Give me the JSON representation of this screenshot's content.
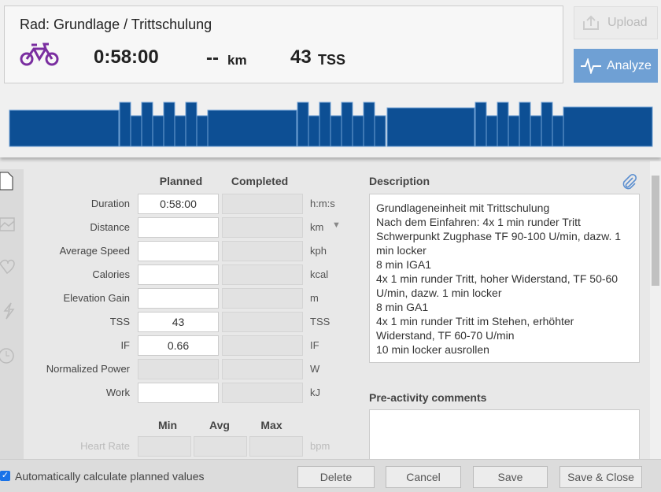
{
  "header": {
    "title": "Rad: Grundlage / Trittschulung",
    "duration": "0:58:00",
    "distance": "--",
    "distance_unit": "km",
    "tss": "43",
    "tss_unit": "TSS"
  },
  "actions": {
    "upload": "Upload",
    "analyze": "Analyze"
  },
  "planned_form": {
    "columns": [
      "Planned",
      "Completed"
    ],
    "rows": [
      {
        "label": "Duration",
        "planned": "0:58:00",
        "unit": "h:m:s"
      },
      {
        "label": "Distance",
        "unit": "km",
        "dropdown": true
      },
      {
        "label": "Average Speed",
        "unit": "kph"
      },
      {
        "label": "Calories",
        "unit": "kcal"
      },
      {
        "label": "Elevation Gain",
        "unit": "m"
      },
      {
        "label": "TSS",
        "planned": "43",
        "unit": "TSS"
      },
      {
        "label": "IF",
        "planned": "0.66",
        "unit": "IF"
      },
      {
        "label": "Normalized Power",
        "unit": "W",
        "disabled": true
      },
      {
        "label": "Work",
        "unit": "kJ"
      }
    ]
  },
  "range_form": {
    "columns": [
      "Min",
      "Avg",
      "Max"
    ],
    "rows": [
      {
        "label": "Heart Rate",
        "unit": "bpm"
      }
    ]
  },
  "description": {
    "label": "Description",
    "lines": [
      "Grundlageneinheit mit Trittschulung",
      "Nach dem Einfahren: 4x 1 min runder Tritt Schwerpunkt Zugphase TF 90-100 U/min, dazw. 1 min locker",
      "8 min IGA1",
      "4x 1 min runder Tritt, hoher Widerstand, TF 50-60 U/min, dazw. 1 min locker",
      "8 min GA1",
      "4x 1 min runder Tritt im Stehen, erhöhter Widerstand, TF 60-70 U/min",
      "10 min locker ausrollen"
    ]
  },
  "comments": {
    "label": "Pre-activity comments"
  },
  "footer": {
    "auto_calculate": "Automatically calculate planned values",
    "buttons": [
      "Delete",
      "Cancel",
      "Save",
      "Save & Close"
    ]
  }
}
